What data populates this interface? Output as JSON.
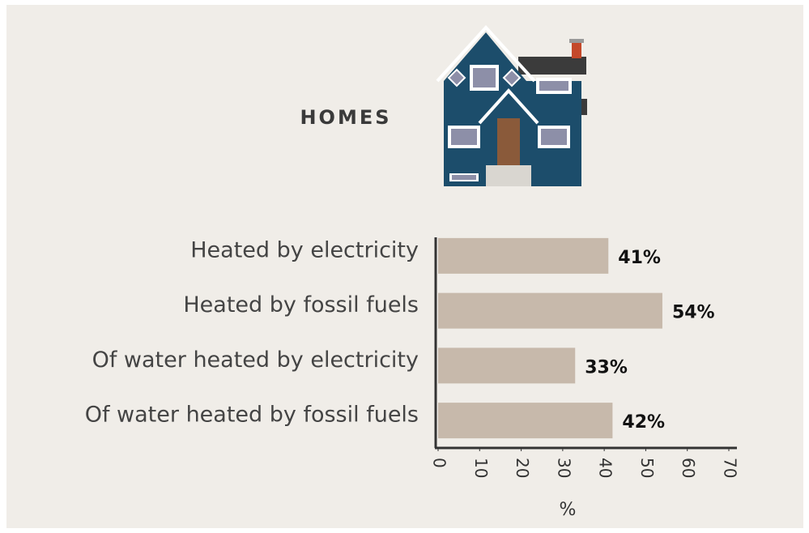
{
  "chart_data": {
    "type": "bar",
    "orientation": "horizontal",
    "title": "HOMES",
    "categories": [
      "Heated by electricity",
      "Heated by fossil fuels",
      "Of water heated by electricity",
      "Of water heated by fossil fuels"
    ],
    "values": [
      41,
      54,
      33,
      42
    ],
    "value_labels": [
      "41%",
      "54%",
      "33%",
      "42%"
    ],
    "color": "#c7b9ab",
    "xlim": [
      0,
      70
    ],
    "xticks": [
      0,
      10,
      20,
      30,
      40,
      50,
      60,
      70
    ],
    "xlabel": "%",
    "grid": false
  }
}
